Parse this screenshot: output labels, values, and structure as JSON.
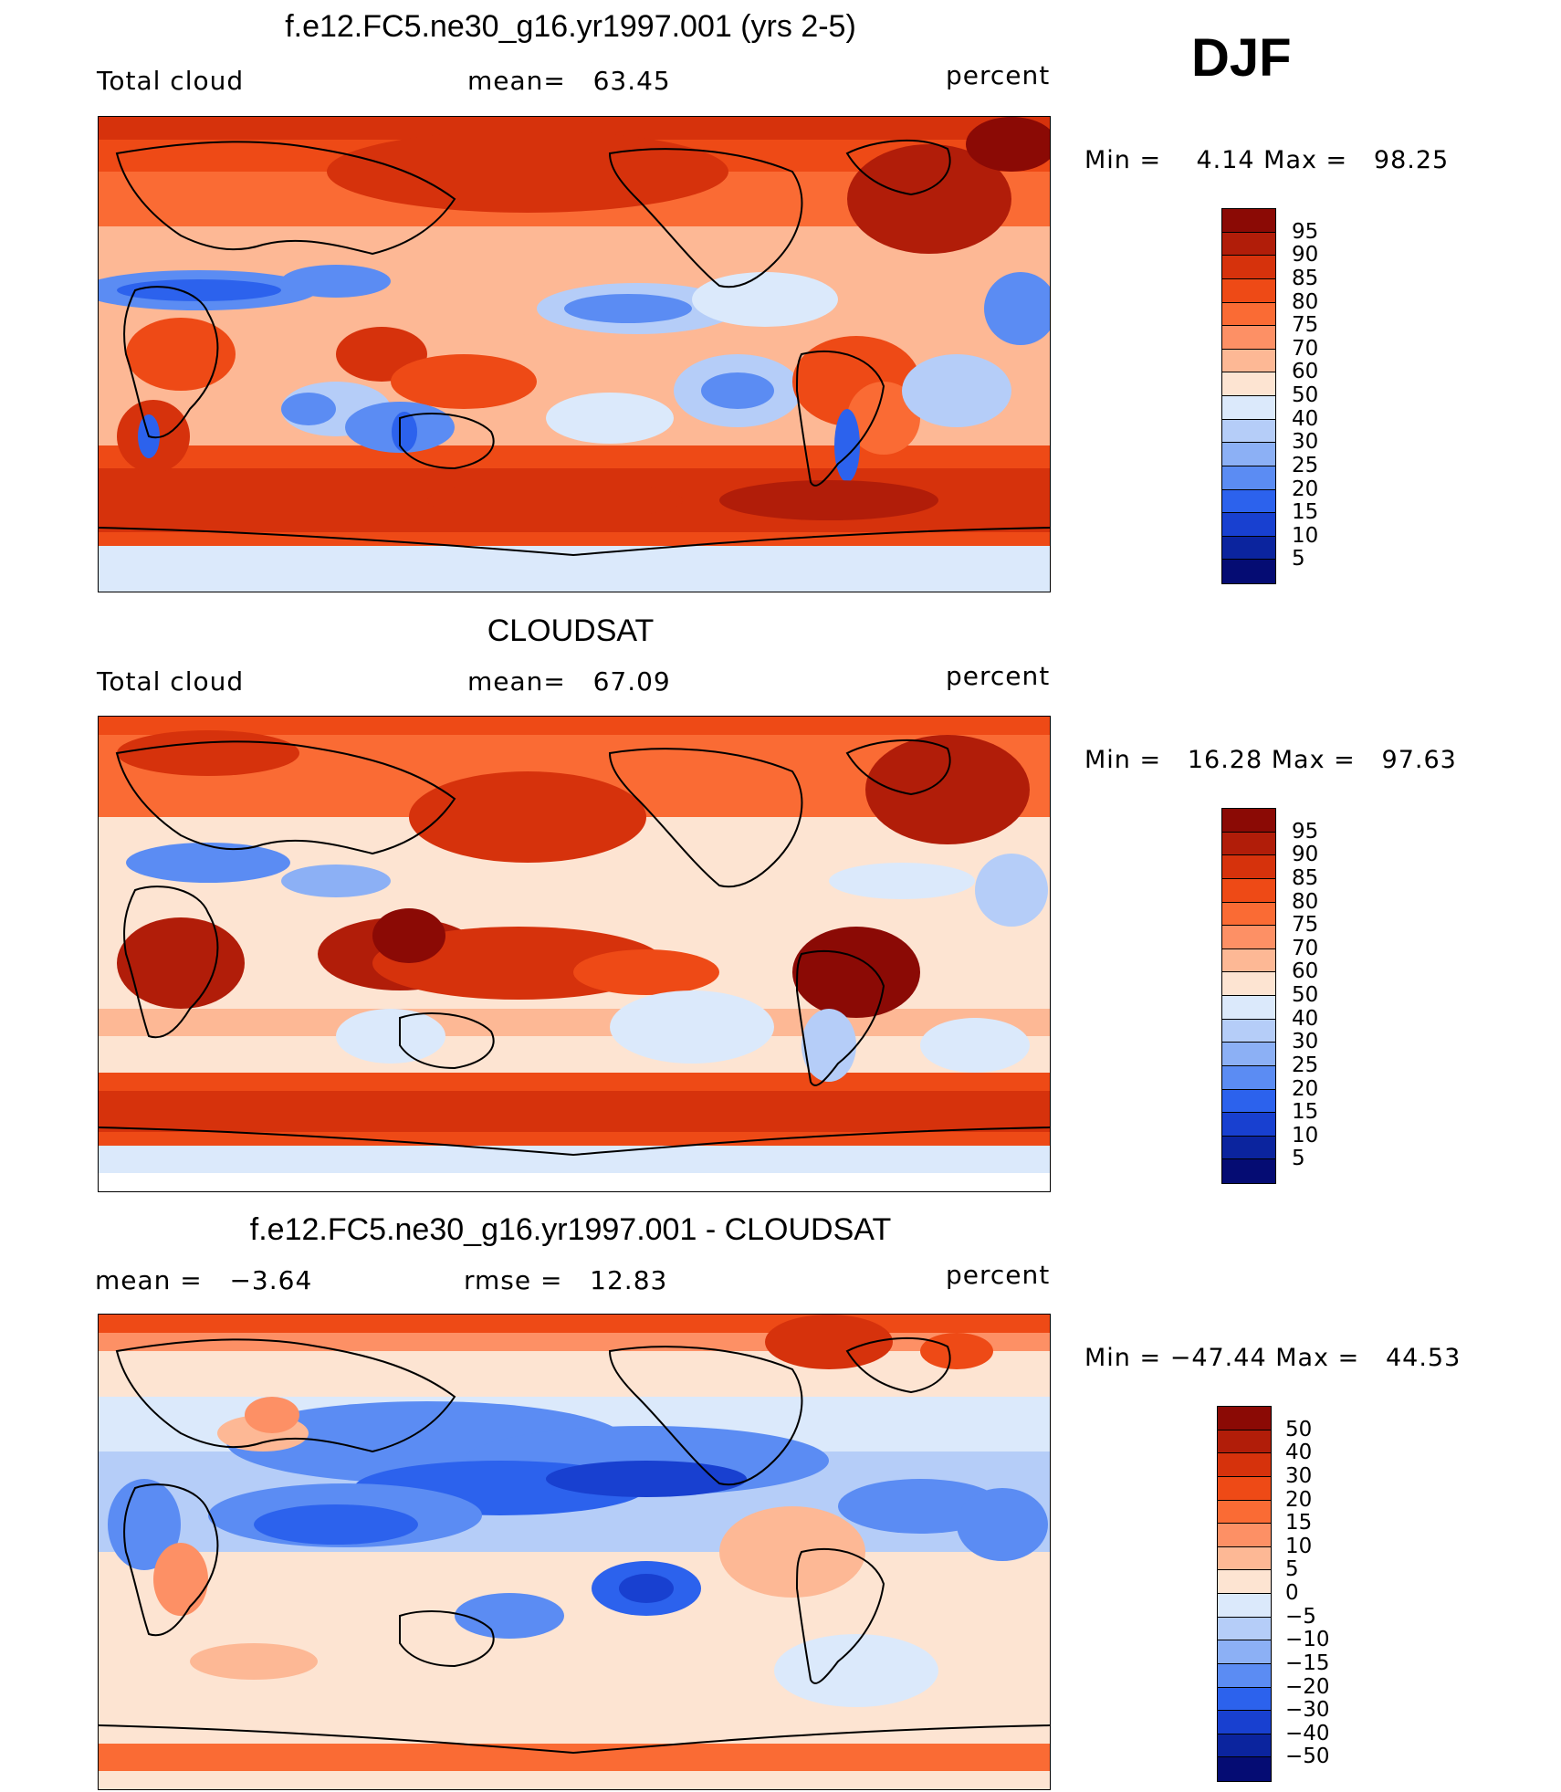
{
  "season": "DJF",
  "panels": [
    {
      "title": "f.e12.FC5.ne30_g16.yr1997.001 (yrs 2-5)",
      "left_label": "Total cloud",
      "center_label": "mean=   63.45",
      "units": "percent",
      "minmax": "Min =    4.14 Max =   98.25",
      "kind": "model"
    },
    {
      "title": "CLOUDSAT",
      "left_label": "Total cloud",
      "center_label": "mean=   67.09",
      "units": "percent",
      "minmax": "Min =   16.28 Max =   97.63",
      "kind": "obs"
    },
    {
      "title": "f.e12.FC5.ne30_g16.yr1997.001 - CLOUDSAT",
      "left_label": "mean =   −3.64",
      "center_label": "rmse =   12.83",
      "units": "percent",
      "minmax": "Min = −47.44 Max =   44.53",
      "kind": "diff"
    }
  ],
  "colorbars": {
    "absolute": {
      "labels": [
        "95",
        "90",
        "85",
        "80",
        "75",
        "70",
        "60",
        "50",
        "40",
        "30",
        "25",
        "20",
        "15",
        "10",
        "5"
      ],
      "colors": [
        "#8b0a05",
        "#b11d09",
        "#d6320c",
        "#ee4a16",
        "#fa6b34",
        "#fd9065",
        "#fdb895",
        "#fde4d2",
        "#dbe9fb",
        "#b5cdf8",
        "#8cb0f5",
        "#5b8cf3",
        "#2c62ed",
        "#1840d0",
        "#0b249e",
        "#050c73"
      ]
    },
    "difference": {
      "labels": [
        "50",
        "40",
        "30",
        "20",
        "15",
        "10",
        "5",
        "0",
        "−5",
        "−10",
        "−15",
        "−20",
        "−30",
        "−40",
        "−50"
      ],
      "colors": [
        "#8b0a05",
        "#b11d09",
        "#d6320c",
        "#ee4a16",
        "#fa6b34",
        "#fd9065",
        "#fdb895",
        "#fde4d2",
        "#dbe9fb",
        "#b5cdf8",
        "#8cb0f5",
        "#5b8cf3",
        "#2c62ed",
        "#1840d0",
        "#0b249e",
        "#050c73"
      ]
    }
  }
}
